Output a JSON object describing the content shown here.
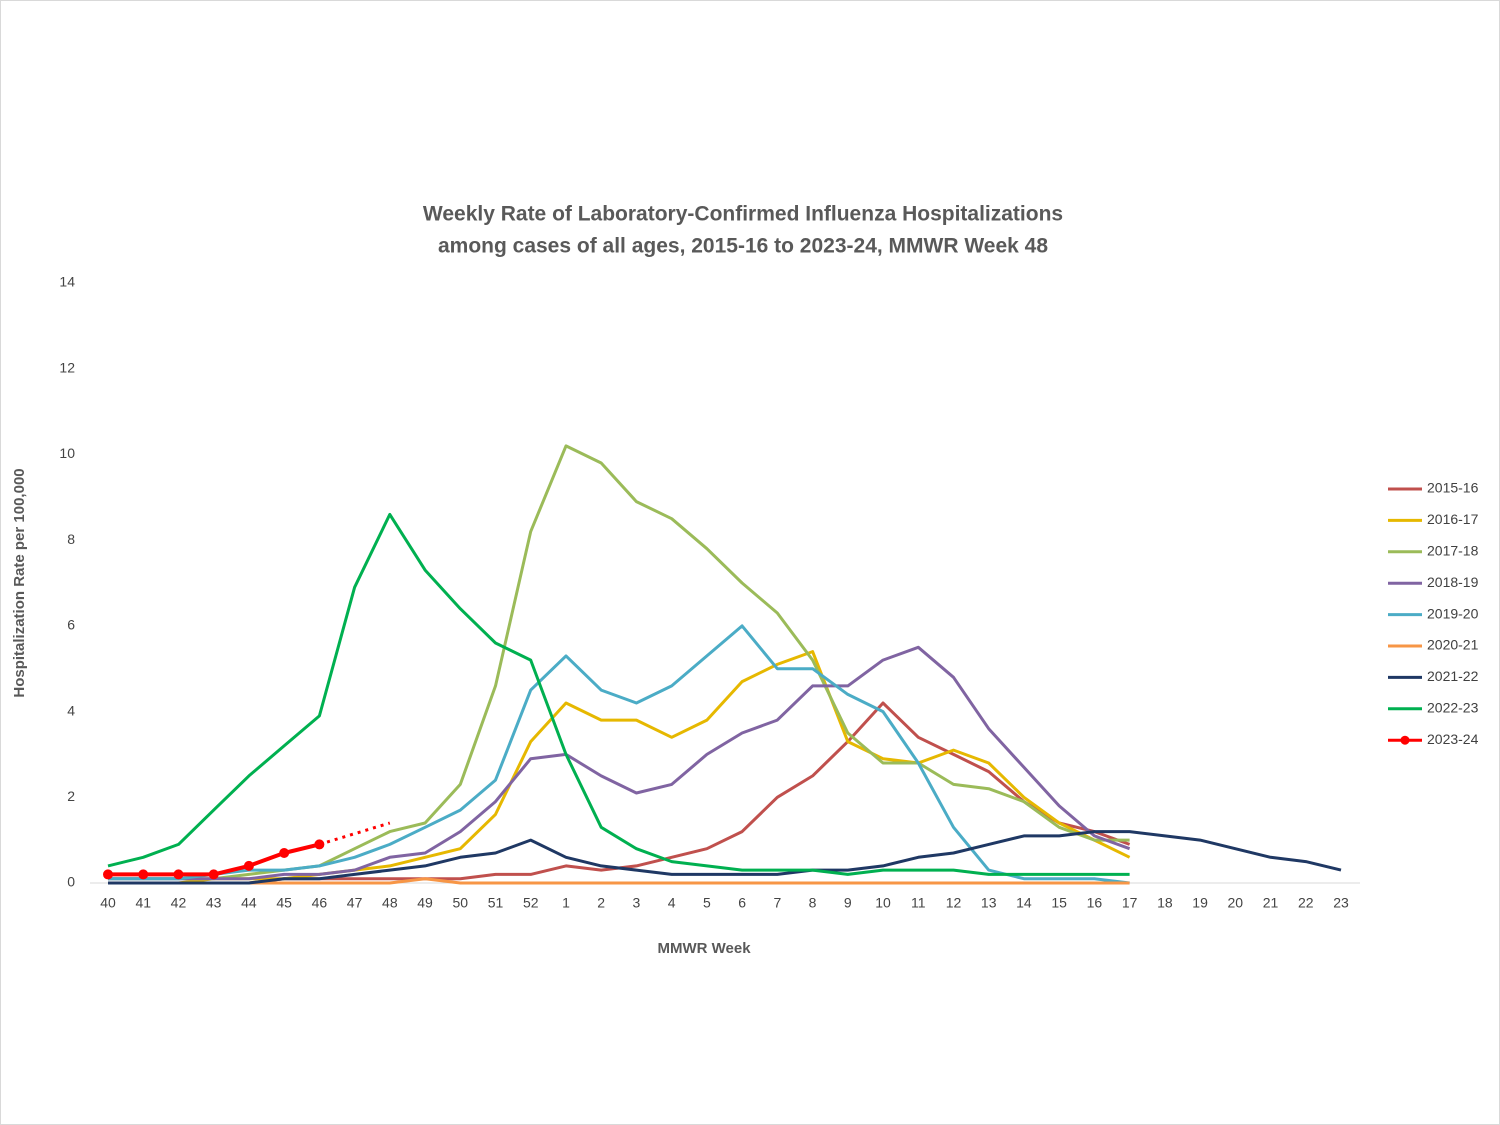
{
  "chart_data": {
    "type": "line",
    "title": [
      "Weekly Rate of Laboratory-Confirmed Influenza Hospitalizations",
      "among cases of all ages, 2015-16 to 2023-24, MMWR Week 48"
    ],
    "x_label": "MMWR Week",
    "y_label": "Hospitalization Rate per 100,000",
    "categories": [
      "40",
      "41",
      "42",
      "43",
      "44",
      "45",
      "46",
      "47",
      "48",
      "49",
      "50",
      "51",
      "52",
      "1",
      "2",
      "3",
      "4",
      "5",
      "6",
      "7",
      "8",
      "9",
      "10",
      "11",
      "12",
      "13",
      "14",
      "15",
      "16",
      "17",
      "18",
      "19",
      "20",
      "21",
      "22",
      "23"
    ],
    "ylim": [
      0,
      14
    ],
    "yticks": [
      0,
      2,
      4,
      6,
      8,
      10,
      12,
      14
    ],
    "grid": false,
    "legend": "right",
    "series": [
      {
        "name": "2015-16",
        "color": "#c0504d",
        "values": [
          0,
          0,
          0,
          0,
          0,
          0.1,
          0.1,
          0.1,
          0.1,
          0.1,
          0.1,
          0.2,
          0.2,
          0.4,
          0.3,
          0.4,
          0.6,
          0.8,
          1.2,
          2.0,
          2.5,
          3.3,
          4.2,
          3.4,
          3.0,
          2.6,
          1.9,
          1.4,
          1.2,
          0.9,
          null,
          null,
          null,
          null,
          null,
          null
        ]
      },
      {
        "name": "2016-17",
        "color": "#e6b800",
        "values": [
          0,
          0,
          0,
          0.1,
          0.1,
          0.1,
          0.2,
          0.3,
          0.4,
          0.6,
          0.8,
          1.6,
          3.3,
          4.2,
          3.8,
          3.8,
          3.4,
          3.8,
          4.7,
          5.1,
          5.4,
          3.3,
          2.9,
          2.8,
          3.1,
          2.8,
          2.0,
          1.4,
          1.0,
          0.6,
          null,
          null,
          null,
          null,
          null,
          null
        ]
      },
      {
        "name": "2017-18",
        "color": "#9bbb59",
        "values": [
          0.1,
          0.1,
          0.1,
          0.1,
          0.2,
          0.3,
          0.4,
          0.8,
          1.2,
          1.4,
          2.3,
          4.6,
          8.2,
          10.2,
          9.8,
          8.9,
          8.5,
          7.8,
          7.0,
          6.3,
          5.2,
          3.5,
          2.8,
          2.8,
          2.3,
          2.2,
          1.9,
          1.3,
          1.0,
          1.0,
          null,
          null,
          null,
          null,
          null,
          null
        ]
      },
      {
        "name": "2018-19",
        "color": "#8064a2",
        "values": [
          0.1,
          0.1,
          0.1,
          0.1,
          0.1,
          0.2,
          0.2,
          0.3,
          0.6,
          0.7,
          1.2,
          1.9,
          2.9,
          3.0,
          2.5,
          2.1,
          2.3,
          3.0,
          3.5,
          3.8,
          4.6,
          4.6,
          5.2,
          5.5,
          4.8,
          3.6,
          2.7,
          1.8,
          1.1,
          0.8,
          null,
          null,
          null,
          null,
          null,
          null
        ]
      },
      {
        "name": "2019-20",
        "color": "#4bacc6",
        "values": [
          0.1,
          0.1,
          0.1,
          0.2,
          0.3,
          0.3,
          0.4,
          0.6,
          0.9,
          1.3,
          1.7,
          2.4,
          4.5,
          5.3,
          4.5,
          4.2,
          4.6,
          5.3,
          6.0,
          5.0,
          5.0,
          4.4,
          4.0,
          2.8,
          1.3,
          0.3,
          0.1,
          0.1,
          0.1,
          0,
          null,
          null,
          null,
          null,
          null,
          null
        ]
      },
      {
        "name": "2020-21",
        "color": "#f79646",
        "values": [
          0,
          0,
          0,
          0,
          0,
          0,
          0,
          0,
          0,
          0.1,
          0,
          0,
          0,
          0,
          0,
          0,
          0,
          0,
          0,
          0,
          0,
          0,
          0,
          0,
          0,
          0,
          0,
          0,
          0,
          0,
          null,
          null,
          null,
          null,
          null,
          null
        ]
      },
      {
        "name": "2021-22",
        "color": "#1f3864",
        "values": [
          0,
          0,
          0,
          0,
          0,
          0.1,
          0.1,
          0.2,
          0.3,
          0.4,
          0.6,
          0.7,
          1.0,
          0.6,
          0.4,
          0.3,
          0.2,
          0.2,
          0.2,
          0.2,
          0.3,
          0.3,
          0.4,
          0.6,
          0.7,
          0.9,
          1.1,
          1.1,
          1.2,
          1.2,
          1.1,
          1.0,
          0.8,
          0.6,
          0.5,
          0.3
        ]
      },
      {
        "name": "2022-23",
        "color": "#00b050",
        "values": [
          0.4,
          0.6,
          0.9,
          1.7,
          2.5,
          3.2,
          3.9,
          6.9,
          8.6,
          7.3,
          6.4,
          5.6,
          5.2,
          3.0,
          1.3,
          0.8,
          0.5,
          0.4,
          0.3,
          0.3,
          0.3,
          0.2,
          0.3,
          0.3,
          0.3,
          0.2,
          0.2,
          0.2,
          0.2,
          0.2,
          null,
          null,
          null,
          null,
          null,
          null
        ]
      },
      {
        "name": "2023-24",
        "color": "#ff0000",
        "markers": true,
        "values": [
          0.2,
          0.2,
          0.2,
          0.2,
          0.4,
          0.7,
          0.9,
          null,
          null,
          null,
          null,
          null,
          null,
          null,
          null,
          null,
          null,
          null,
          null,
          null,
          null,
          null,
          null,
          null,
          null,
          null,
          null,
          null,
          null,
          null,
          null,
          null,
          null,
          null,
          null,
          null
        ]
      },
      {
        "color": "#ff0000",
        "dashed": true,
        "values": [
          null,
          null,
          null,
          null,
          null,
          null,
          0.9,
          1.15,
          1.4,
          null,
          null,
          null,
          null,
          null,
          null,
          null,
          null,
          null,
          null,
          null,
          null,
          null,
          null,
          null,
          null,
          null,
          null,
          null,
          null,
          null,
          null,
          null,
          null,
          null,
          null,
          null
        ]
      }
    ]
  }
}
